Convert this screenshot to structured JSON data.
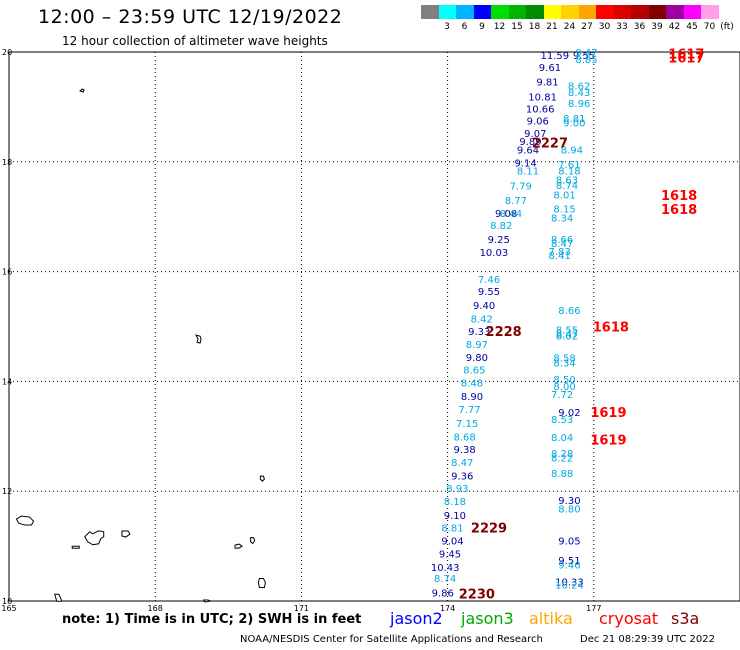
{
  "header": {
    "title": "12:00 – 23:59 UTC 12/19/2022",
    "subtitle": "12 hour collection of altimeter wave heights"
  },
  "scale": {
    "unit": "(ft)",
    "items": [
      {
        "label": "",
        "color": "#808080"
      },
      {
        "label": "3",
        "color": "#00ffff"
      },
      {
        "label": "6",
        "color": "#00b4ff"
      },
      {
        "label": "9",
        "color": "#0000ff"
      },
      {
        "label": "12",
        "color": "#00dd00"
      },
      {
        "label": "15",
        "color": "#00b400"
      },
      {
        "label": "18",
        "color": "#008c00"
      },
      {
        "label": "21",
        "color": "#ffff00"
      },
      {
        "label": "24",
        "color": "#ffd200"
      },
      {
        "label": "27",
        "color": "#ffa500"
      },
      {
        "label": "30",
        "color": "#ff0000"
      },
      {
        "label": "33",
        "color": "#dc0000"
      },
      {
        "label": "36",
        "color": "#b40000"
      },
      {
        "label": "39",
        "color": "#800000"
      },
      {
        "label": "42",
        "color": "#a000a0"
      },
      {
        "label": "45",
        "color": "#ff00ff"
      },
      {
        "label": "70",
        "color": "#ffa0e6"
      },
      {
        "label": "(ft)",
        "color": "#000000"
      }
    ]
  },
  "map": {
    "lon_min": 165,
    "lon_max": 180,
    "lat_min": 10,
    "lat_max": 20,
    "lon_ticks": [
      "165",
      "168",
      "171",
      "174",
      "177"
    ],
    "lat_ticks": [
      "20",
      "18",
      "16",
      "14",
      "12",
      "10"
    ],
    "colors": {
      "dark": "#0000a0",
      "light": "#00a8e0",
      "time_dark": "#800000",
      "time_red": "#ff0000"
    }
  },
  "chart_data": {
    "type": "scatter",
    "title": "12:00 – 23:59 UTC 12/19/2022",
    "xlim": [
      165,
      180
    ],
    "ylim": [
      10,
      20
    ],
    "series": [
      {
        "name": "jason2",
        "points": [
          {
            "lon": 176.2,
            "lat": 19.93,
            "v": "11.59"
          },
          {
            "lon": 176.1,
            "lat": 19.71,
            "v": "9.61"
          },
          {
            "lon": 176.05,
            "lat": 19.44,
            "v": "9.81"
          },
          {
            "lon": 175.95,
            "lat": 19.17,
            "v": "10.81"
          },
          {
            "lon": 175.9,
            "lat": 18.95,
            "v": "10.66"
          },
          {
            "lon": 175.85,
            "lat": 18.73,
            "v": "9.06"
          },
          {
            "lon": 175.8,
            "lat": 18.51,
            "v": "9.07"
          },
          {
            "lon": 175.7,
            "lat": 18.36,
            "v": "9.89"
          },
          {
            "lon": 175.65,
            "lat": 18.21,
            "v": "9.64"
          },
          {
            "lon": 175.6,
            "lat": 17.97,
            "v": "9.14"
          },
          {
            "lon": 175.2,
            "lat": 17.05,
            "v": "9.08"
          },
          {
            "lon": 175.05,
            "lat": 16.58,
            "v": "9.25"
          },
          {
            "lon": 174.95,
            "lat": 16.34,
            "v": "10.03"
          },
          {
            "lon": 174.85,
            "lat": 15.63,
            "v": "9.55"
          },
          {
            "lon": 174.75,
            "lat": 15.37,
            "v": "9.40"
          },
          {
            "lon": 174.65,
            "lat": 14.9,
            "v": "9.33"
          },
          {
            "lon": 174.6,
            "lat": 14.43,
            "v": "9.80"
          },
          {
            "lon": 174.5,
            "lat": 13.72,
            "v": "8.90"
          },
          {
            "lon": 174.35,
            "lat": 12.75,
            "v": "9.38"
          },
          {
            "lon": 174.3,
            "lat": 12.27,
            "v": "9.36"
          },
          {
            "lon": 174.15,
            "lat": 11.55,
            "v": "9.10"
          },
          {
            "lon": 174.1,
            "lat": 11.08,
            "v": "9.04"
          },
          {
            "lon": 174.05,
            "lat": 10.85,
            "v": "9.45"
          },
          {
            "lon": 173.95,
            "lat": 10.6,
            "v": "10.43"
          },
          {
            "lon": 173.9,
            "lat": 10.14,
            "v": "9.86"
          },
          {
            "lon": 176.8,
            "lat": 19.93,
            "v": "9.55"
          },
          {
            "lon": 176.5,
            "lat": 13.42,
            "v": "9.02"
          },
          {
            "lon": 176.5,
            "lat": 11.82,
            "v": "9.30"
          },
          {
            "lon": 176.5,
            "lat": 11.08,
            "v": "9.05"
          },
          {
            "lon": 176.5,
            "lat": 10.73,
            "v": "9.51"
          },
          {
            "lon": 176.5,
            "lat": 10.34,
            "v": "10.33"
          }
        ]
      },
      {
        "name": "jason3",
        "points": [
          {
            "lon": 176.85,
            "lat": 19.98,
            "v": "9.47"
          },
          {
            "lon": 176.85,
            "lat": 19.85,
            "v": "8.85"
          },
          {
            "lon": 176.7,
            "lat": 19.37,
            "v": "8.62"
          },
          {
            "lon": 176.7,
            "lat": 19.25,
            "v": "8.43"
          },
          {
            "lon": 176.7,
            "lat": 19.05,
            "v": "8.96"
          },
          {
            "lon": 176.6,
            "lat": 18.78,
            "v": "8.81"
          },
          {
            "lon": 176.6,
            "lat": 18.7,
            "v": "9.00"
          },
          {
            "lon": 176.55,
            "lat": 18.21,
            "v": "8.94"
          },
          {
            "lon": 176.5,
            "lat": 17.94,
            "v": "7.61"
          },
          {
            "lon": 176.5,
            "lat": 17.82,
            "v": "8.18"
          },
          {
            "lon": 176.45,
            "lat": 17.66,
            "v": "8.63"
          },
          {
            "lon": 176.45,
            "lat": 17.56,
            "v": "8.74"
          },
          {
            "lon": 176.4,
            "lat": 17.39,
            "v": "8.01"
          },
          {
            "lon": 176.4,
            "lat": 17.13,
            "v": "8.15"
          },
          {
            "lon": 176.35,
            "lat": 16.97,
            "v": "8.34"
          },
          {
            "lon": 176.35,
            "lat": 16.58,
            "v": "8.66"
          },
          {
            "lon": 176.35,
            "lat": 16.5,
            "v": "8.47"
          },
          {
            "lon": 176.3,
            "lat": 16.36,
            "v": "7.83"
          },
          {
            "lon": 176.3,
            "lat": 16.28,
            "v": "8.41"
          },
          {
            "lon": 175.65,
            "lat": 17.82,
            "v": "8.11"
          },
          {
            "lon": 175.5,
            "lat": 17.55,
            "v": "7.79"
          },
          {
            "lon": 175.4,
            "lat": 17.29,
            "v": "8.77"
          },
          {
            "lon": 175.3,
            "lat": 17.05,
            "v": "8.44"
          },
          {
            "lon": 175.1,
            "lat": 16.83,
            "v": "8.82"
          },
          {
            "lon": 174.85,
            "lat": 15.85,
            "v": "7.46"
          },
          {
            "lon": 174.7,
            "lat": 15.13,
            "v": "8.42"
          },
          {
            "lon": 174.6,
            "lat": 14.66,
            "v": "8.97"
          },
          {
            "lon": 174.55,
            "lat": 14.2,
            "v": "8.65"
          },
          {
            "lon": 174.5,
            "lat": 13.96,
            "v": "8.48"
          },
          {
            "lon": 174.45,
            "lat": 13.48,
            "v": "7.77"
          },
          {
            "lon": 174.4,
            "lat": 13.22,
            "v": "7.15"
          },
          {
            "lon": 174.35,
            "lat": 12.98,
            "v": "8.68"
          },
          {
            "lon": 174.3,
            "lat": 12.51,
            "v": "8.47"
          },
          {
            "lon": 174.2,
            "lat": 12.04,
            "v": "8.93"
          },
          {
            "lon": 174.15,
            "lat": 11.8,
            "v": "8.18"
          },
          {
            "lon": 174.1,
            "lat": 11.32,
            "v": "8.81"
          },
          {
            "lon": 173.95,
            "lat": 10.4,
            "v": "8.74"
          },
          {
            "lon": 176.5,
            "lat": 15.28,
            "v": "8.66"
          },
          {
            "lon": 176.45,
            "lat": 14.93,
            "v": "8.55"
          },
          {
            "lon": 176.45,
            "lat": 14.85,
            "v": "8.47"
          },
          {
            "lon": 176.45,
            "lat": 14.82,
            "v": "8.02"
          },
          {
            "lon": 176.4,
            "lat": 14.42,
            "v": "8.58"
          },
          {
            "lon": 176.4,
            "lat": 14.33,
            "v": "8.34"
          },
          {
            "lon": 176.4,
            "lat": 14.03,
            "v": "8.50"
          },
          {
            "lon": 176.4,
            "lat": 13.9,
            "v": "8.00"
          },
          {
            "lon": 176.35,
            "lat": 13.75,
            "v": "7.72"
          },
          {
            "lon": 176.35,
            "lat": 13.3,
            "v": "8.53"
          },
          {
            "lon": 176.35,
            "lat": 12.97,
            "v": "8.04"
          },
          {
            "lon": 176.35,
            "lat": 12.68,
            "v": "8.28"
          },
          {
            "lon": 176.35,
            "lat": 12.6,
            "v": "8.22"
          },
          {
            "lon": 176.35,
            "lat": 12.31,
            "v": "8.88"
          },
          {
            "lon": 176.5,
            "lat": 11.67,
            "v": "8.80"
          },
          {
            "lon": 176.5,
            "lat": 10.65,
            "v": "9.46"
          },
          {
            "lon": 176.5,
            "lat": 10.28,
            "v": "10.24"
          }
        ]
      }
    ],
    "time_labels": [
      {
        "lon": 178.9,
        "lat": 19.95,
        "v": "1617",
        "kind": "red"
      },
      {
        "lon": 178.9,
        "lat": 19.88,
        "v": "1617",
        "kind": "red"
      },
      {
        "lon": 176.1,
        "lat": 18.33,
        "v": "2227",
        "kind": "dark"
      },
      {
        "lon": 178.75,
        "lat": 17.38,
        "v": "1618",
        "kind": "red"
      },
      {
        "lon": 178.75,
        "lat": 17.12,
        "v": "1618",
        "kind": "red"
      },
      {
        "lon": 177.35,
        "lat": 14.98,
        "v": "1618",
        "kind": "red"
      },
      {
        "lon": 175.15,
        "lat": 14.9,
        "v": "2228",
        "kind": "dark"
      },
      {
        "lon": 177.3,
        "lat": 13.42,
        "v": "1619",
        "kind": "red"
      },
      {
        "lon": 177.3,
        "lat": 12.92,
        "v": "1619",
        "kind": "red"
      },
      {
        "lon": 174.85,
        "lat": 11.32,
        "v": "2229",
        "kind": "dark"
      },
      {
        "lon": 174.6,
        "lat": 10.12,
        "v": "2230",
        "kind": "dark"
      }
    ]
  },
  "legend": {
    "note": "note:  1) Time is in UTC;  2) SWH is in feet",
    "sats": [
      {
        "name": "jason2",
        "color": "#0000ff"
      },
      {
        "name": "jason3",
        "color": "#00aa00"
      },
      {
        "name": "altika",
        "color": "#ffa500"
      },
      {
        "name": "cryosat",
        "color": "#ff0000"
      },
      {
        "name": "s3a",
        "color": "#800000"
      }
    ]
  },
  "footer": {
    "credit": "NOAA/NESDIS Center for Satellite Applications and Research",
    "timestamp": "Dec 21 08:29:39 UTC 2022"
  }
}
